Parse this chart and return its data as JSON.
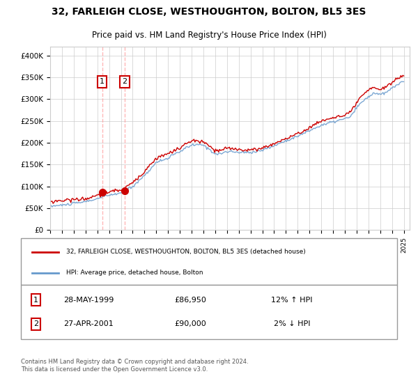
{
  "title": "32, FARLEIGH CLOSE, WESTHOUGHTON, BOLTON, BL5 3ES",
  "subtitle": "Price paid vs. HM Land Registry's House Price Index (HPI)",
  "ylabel_ticks": [
    "£0",
    "£50K",
    "£100K",
    "£150K",
    "£200K",
    "£250K",
    "£300K",
    "£350K",
    "£400K"
  ],
  "ytick_values": [
    0,
    50000,
    100000,
    150000,
    200000,
    250000,
    300000,
    350000,
    400000
  ],
  "ylim": [
    0,
    420000
  ],
  "xlim_start": 1995.0,
  "xlim_end": 2025.5,
  "sale1": {
    "date": 1999.41,
    "price": 86950,
    "label": "1",
    "hpi_pct": "12% ↑ HPI",
    "date_str": "28-MAY-1999",
    "price_str": "£86,950"
  },
  "sale2": {
    "date": 2001.32,
    "price": 90000,
    "label": "2",
    "hpi_pct": "2% ↓ HPI",
    "date_str": "27-APR-2001",
    "price_str": "£90,000"
  },
  "legend_line1": "32, FARLEIGH CLOSE, WESTHOUGHTON, BOLTON, BL5 3ES (detached house)",
  "legend_line2": "HPI: Average price, detached house, Bolton",
  "footer": "Contains HM Land Registry data © Crown copyright and database right 2024.\nThis data is licensed under the Open Government Licence v3.0.",
  "price_line_color": "#cc0000",
  "hpi_line_color": "#6699cc",
  "sale_dot_color": "#cc0000",
  "grid_color": "#cccccc",
  "background_color": "#ffffff",
  "sale_box_color": "#cc0000"
}
